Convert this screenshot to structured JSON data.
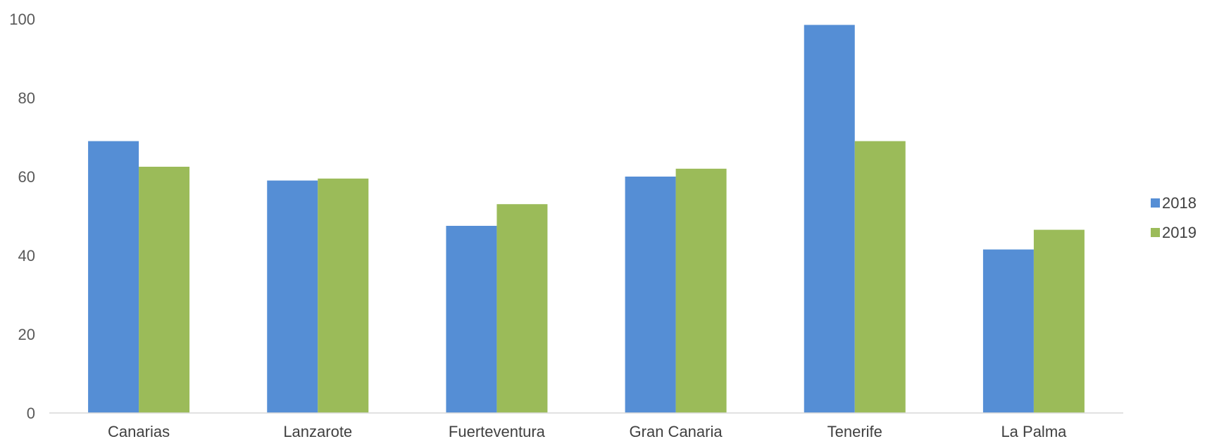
{
  "chart_data": {
    "type": "bar",
    "title": "",
    "xlabel": "",
    "ylabel": "",
    "ylim": [
      0,
      100
    ],
    "yticks": [
      "0",
      "20",
      "40",
      "60",
      "80",
      "100"
    ],
    "grid": false,
    "legend_position": "right",
    "categories": [
      "Canarias",
      "Lanzarote",
      "Fuerteventura",
      "Gran Canaria",
      "Tenerife",
      "La Palma"
    ],
    "series": [
      {
        "name": "2018",
        "color": "#558ED5",
        "values": [
          69,
          59,
          47.5,
          60,
          98.5,
          41.5
        ]
      },
      {
        "name": "2019",
        "color": "#9BBB59",
        "values": [
          62.5,
          59.5,
          53,
          62,
          69,
          46.5
        ]
      }
    ]
  }
}
